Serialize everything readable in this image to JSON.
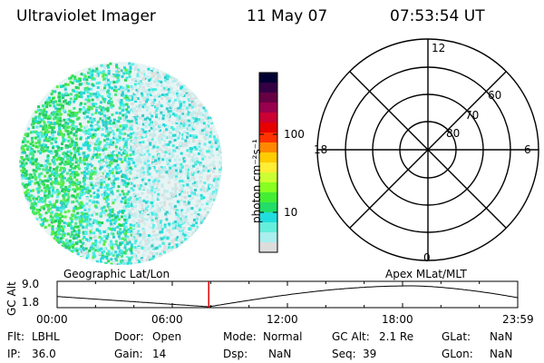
{
  "header": {
    "title": "Ultraviolet Imager",
    "date": "11 May 07",
    "time": "07:53:54 UT"
  },
  "colorbar": {
    "unit_label": "photon cm⁻²s⁻¹",
    "ticks": [
      "100",
      "10"
    ],
    "colors": [
      "#000033",
      "#330044",
      "#660044",
      "#99004d",
      "#cc0033",
      "#e60000",
      "#ff3300",
      "#ff8800",
      "#ffcc00",
      "#ffee33",
      "#ccff33",
      "#88ff22",
      "#44ee33",
      "#22dd66",
      "#22dddd",
      "#66eedd",
      "#aaeeee",
      "#dddddd"
    ]
  },
  "polar": {
    "mlt_labels": {
      "top": "12",
      "left": "18",
      "right": "6",
      "bottom": "0"
    },
    "lat_labels": [
      "60",
      "70",
      "80"
    ]
  },
  "orbit": {
    "left_label": "Geographic Lat/Lon",
    "right_label": "Apex MLat/MLT",
    "axis_label": "GC Alt",
    "y_ticks": [
      "9.0",
      "1.8"
    ],
    "x_ticks": [
      "00:00",
      "06:00",
      "12:00",
      "18:00",
      "23:59"
    ],
    "current_time_marker_hours": 7.9
  },
  "status": {
    "row1": [
      {
        "label": "Flt:",
        "value": "LBHL"
      },
      {
        "label": "Door:",
        "value": "Open"
      },
      {
        "label": "Mode:",
        "value": "Normal"
      },
      {
        "label": "GC Alt:",
        "value": "2.1 Re"
      },
      {
        "label": "GLat:",
        "value": "NaN"
      }
    ],
    "row2": [
      {
        "label": "IP:",
        "value": "36.0"
      },
      {
        "label": "Gain:",
        "value": "14"
      },
      {
        "label": "Dsp:",
        "value": "NaN"
      },
      {
        "label": "Seq:",
        "value": "39"
      },
      {
        "label": "GLon:",
        "value": "NaN"
      }
    ]
  }
}
